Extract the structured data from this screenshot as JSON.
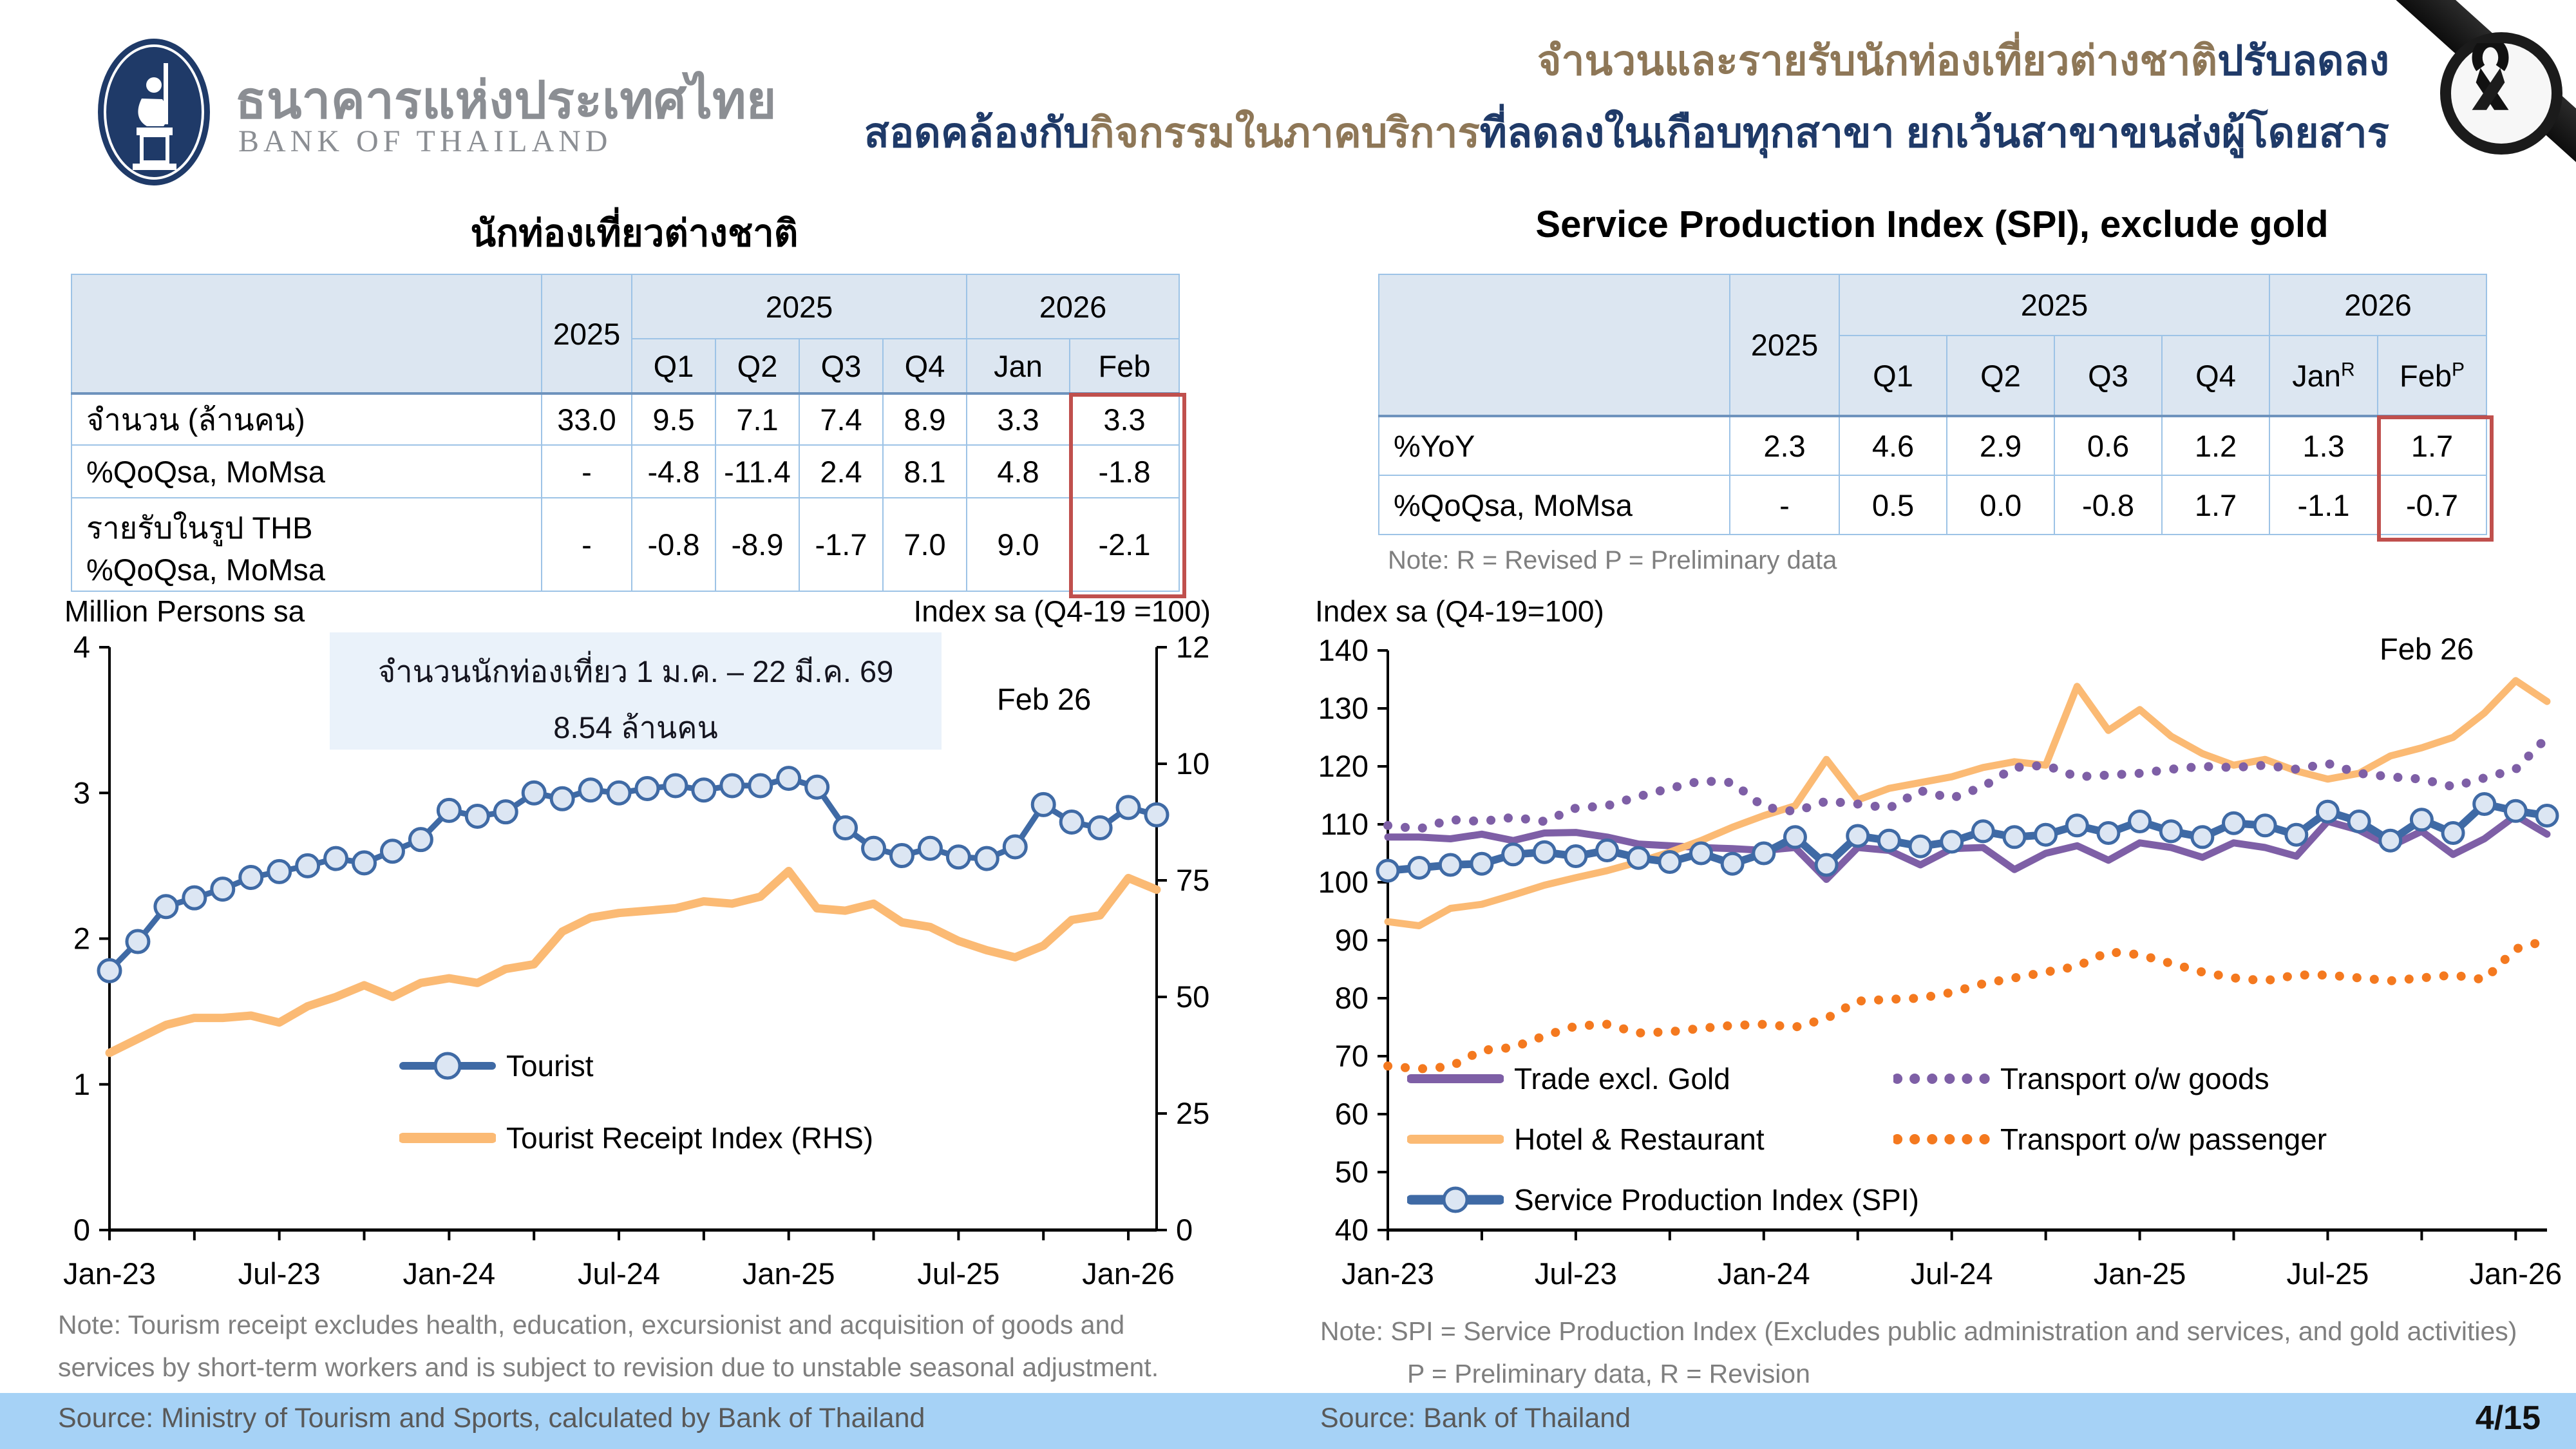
{
  "header": {
    "brand_thai": "ธนาคารแห่งประเทศไทย",
    "brand_en": "BANK OF THAILAND",
    "title_line1_part1": "จำนวนและรายรับนักท่องเที่ยวต่างชาติ",
    "title_line1_part2": "ปรับลดลง",
    "title_line2_part1": "สอดคล้องกับ",
    "title_line2_part2": "กิจกรรมในภาคบริการ",
    "title_line2_part3": "ที่ลดลงในเกือบทุกสาขา ยกเว้นสาขาขนส่งผู้โดยสาร"
  },
  "tables": {
    "tourist": {
      "title": "นักท่องเที่ยวต่างชาติ",
      "year_col": "2025",
      "group_2025": "2025",
      "group_2026": "2026",
      "sub": [
        "Q1",
        "Q2",
        "Q3",
        "Q4",
        "Jan",
        "Feb"
      ],
      "rows": [
        {
          "label": "จำนวน (ล้านคน)",
          "values": [
            "33.0",
            "9.5",
            "7.1",
            "7.4",
            "8.9",
            "3.3",
            "3.3"
          ]
        },
        {
          "label": "%QoQsa, MoMsa",
          "values": [
            "-",
            "-4.8",
            "-11.4",
            "2.4",
            "8.1",
            "4.8",
            "-1.8"
          ]
        },
        {
          "label_line1": "รายรับในรูป THB",
          "label_line2": "%QoQsa, MoMsa",
          "values": [
            "-",
            "-0.8",
            "-8.9",
            "-1.7",
            "7.0",
            "9.0",
            "-2.1"
          ]
        }
      ]
    },
    "spi": {
      "title": "Service Production Index (SPI), exclude gold",
      "year_col": "2025",
      "group_2025": "2025",
      "group_2026": "2026",
      "sub_q": [
        "Q1",
        "Q2",
        "Q3",
        "Q4"
      ],
      "col_jan": "Jan",
      "col_jan_sup": "R",
      "col_feb": "Feb",
      "col_feb_sup": "P",
      "rows": [
        {
          "label": "%YoY",
          "values": [
            "2.3",
            "4.6",
            "2.9",
            "0.6",
            "1.2",
            "1.3",
            "1.7"
          ]
        },
        {
          "label": "%QoQsa, MoMsa",
          "values": [
            "-",
            "0.5",
            "0.0",
            "-0.8",
            "1.7",
            "-1.1",
            "-0.7"
          ]
        }
      ],
      "note": "Note: R = Revised P = Preliminary data"
    }
  },
  "chart_data": [
    {
      "id": "tourist-chart",
      "type": "line",
      "title": "นักท่องเที่ยวต่างชาติ",
      "left_axis_caption": "Million Persons sa",
      "right_axis_caption": "Index sa (Q4-19 =100)",
      "end_label": "Feb 26",
      "annotation_line1": "จำนวนนักท่องเที่ยว 1 ม.ค. – 22 มี.ค. 69",
      "annotation_line2": "8.54 ล้านคน",
      "n_points": 38,
      "x_minor_every": 3,
      "x_tick_labels": [
        "Jan-23",
        "Jul-23",
        "Jan-24",
        "Jul-24",
        "Jan-25",
        "Jul-25",
        "Jan-26"
      ],
      "x_label_positions": [
        0,
        6,
        12,
        18,
        24,
        30,
        36
      ],
      "axes": {
        "left": {
          "min": 0,
          "max": 4,
          "ticks": [
            0,
            1,
            2,
            3,
            4
          ]
        },
        "right": {
          "min": 0,
          "max": 125,
          "ticks": [
            0,
            25,
            50,
            75,
            100,
            125
          ]
        }
      },
      "series": [
        {
          "name": "Tourist",
          "axis": "left",
          "color": "#3F6AA5",
          "width": 9,
          "marker": {
            "r": 17,
            "fill": "#DCE6F3",
            "stroke_width": 5
          },
          "values": [
            1.78,
            1.98,
            2.22,
            2.28,
            2.34,
            2.42,
            2.46,
            2.5,
            2.55,
            2.52,
            2.6,
            2.68,
            2.88,
            2.84,
            2.87,
            3.0,
            2.96,
            3.02,
            3.0,
            3.03,
            3.05,
            3.02,
            3.05,
            3.05,
            3.1,
            3.04,
            2.76,
            2.62,
            2.57,
            2.62,
            2.56,
            2.55,
            2.63,
            2.92,
            2.8,
            2.76,
            2.9,
            2.85
          ]
        },
        {
          "name": "Tourist Receipt Index (RHS)",
          "axis": "right",
          "color": "#FBBA74",
          "width": 13,
          "values": [
            38,
            41,
            44,
            45.5,
            45.5,
            46,
            44.5,
            48,
            50,
            52.5,
            50,
            53,
            54,
            53,
            56,
            57,
            64,
            67,
            68,
            68.5,
            69,
            70.5,
            70,
            71.5,
            77,
            69,
            68.5,
            70,
            66,
            65,
            62,
            60,
            58.5,
            61,
            66.5,
            67.5,
            75.5,
            73
          ]
        }
      ]
    },
    {
      "id": "spi-chart",
      "type": "line",
      "title": "Service Production Index (SPI), exclude gold",
      "left_axis_caption": "Index sa (Q4-19=100)",
      "end_label": "Feb 26",
      "n_points": 38,
      "x_minor_every": 3,
      "x_tick_labels": [
        "Jan-23",
        "Jul-23",
        "Jan-24",
        "Jul-24",
        "Jan-25",
        "Jul-25",
        "Jan-26"
      ],
      "x_label_positions": [
        0,
        6,
        12,
        18,
        24,
        30,
        36
      ],
      "axes": {
        "left": {
          "min": 40,
          "max": 140,
          "ticks": [
            40,
            50,
            60,
            70,
            80,
            90,
            100,
            110,
            120,
            130,
            140
          ]
        }
      },
      "series": [
        {
          "name": "Trade excl. Gold",
          "axis": "left",
          "color": "#7E5FA6",
          "width": 11,
          "values": [
            107.8,
            107.8,
            107.5,
            108.3,
            107.2,
            108.5,
            108.6,
            107.8,
            106.6,
            106.3,
            106.0,
            105.8,
            105.5,
            106.0,
            100.5,
            106.0,
            105.5,
            103.0,
            105.8,
            106.0,
            102.2,
            105.0,
            106.3,
            103.8,
            106.8,
            106.0,
            104.3,
            106.8,
            106.0,
            104.5,
            110.5,
            109.0,
            106.2,
            108.8,
            104.8,
            107.5,
            111.5,
            108.3
          ]
        },
        {
          "name": "Hotel & Restaurant",
          "axis": "left",
          "color": "#FBBA74",
          "width": 11,
          "values": [
            93.2,
            92.5,
            95.5,
            96.2,
            97.8,
            99.5,
            100.8,
            102.0,
            103.5,
            105.2,
            107.2,
            109.5,
            111.5,
            113.2,
            121.2,
            114.2,
            116.2,
            117.2,
            118.2,
            119.8,
            120.8,
            120.2,
            133.8,
            126.2,
            129.8,
            125.2,
            122.2,
            120.2,
            121.2,
            119.2,
            117.8,
            118.8,
            121.8,
            123.2,
            125.0,
            129.2,
            134.8,
            131.2
          ]
        },
        {
          "name": "Service Production Index (SPI)",
          "axis": "left",
          "color": "#3F6AA5",
          "width": 12,
          "marker": {
            "r": 16,
            "fill": "#DCE6F3",
            "stroke_width": 5
          },
          "values": [
            102,
            102.5,
            103,
            103.2,
            104.8,
            105.2,
            104.5,
            105.5,
            104.2,
            103.5,
            105,
            103.2,
            105,
            107.8,
            103,
            108,
            107.2,
            106.2,
            107,
            108.8,
            107.8,
            108.2,
            109.8,
            108.5,
            110.5,
            108.8,
            107.8,
            110.2,
            109.8,
            108.2,
            112.2,
            110.5,
            107.2,
            110.8,
            108.5,
            113.5,
            112.3,
            111.5
          ]
        },
        {
          "name": "Transport o/w goods",
          "axis": "left",
          "color": "#7E5FA6",
          "width": 14,
          "dash": "0.1 27",
          "values": [
            109.8,
            109.2,
            110.8,
            110.5,
            111.2,
            110.5,
            112.8,
            113.2,
            114.8,
            116.2,
            117.5,
            117.2,
            113,
            112.2,
            114,
            113.5,
            112.8,
            115.8,
            114.5,
            116.5,
            119.8,
            120.2,
            118.2,
            118.5,
            118.8,
            119.5,
            120,
            119.8,
            120.2,
            119.5,
            120.5,
            118.8,
            118.2,
            117.8,
            116.5,
            118,
            119.5,
            125
          ]
        },
        {
          "name": "Transport o/w passenger",
          "axis": "left",
          "color": "#F4791F",
          "width": 14,
          "dash": "0.1 27",
          "values": [
            68.3,
            67.8,
            68.2,
            71,
            71.5,
            73.5,
            75.2,
            75.5,
            74,
            74.2,
            74.8,
            75.3,
            75.5,
            75,
            76.5,
            79.5,
            79.8,
            80,
            81,
            82.5,
            83.5,
            84.5,
            85.5,
            88,
            87.5,
            86,
            84.5,
            83.5,
            83,
            84,
            84,
            83.5,
            83,
            83.5,
            84,
            83.2,
            88.5,
            90
          ]
        }
      ]
    }
  ],
  "footers": {
    "left_note_line1": "Note: Tourism receipt excludes health, education, excursionist and acquisition of goods and",
    "left_note_line2": "services by short-term workers and is subject to revision due to unstable seasonal adjustment.",
    "left_source": "Source: Ministry of Tourism and Sports, calculated by Bank of Thailand",
    "right_note_line1": "Note: SPI = Service Production Index (Excludes public administration and services, and gold activities)",
    "right_note_line2": "P = Preliminary data,  R = Revision",
    "right_source": "Source: Bank of Thailand",
    "page": "4/15"
  }
}
